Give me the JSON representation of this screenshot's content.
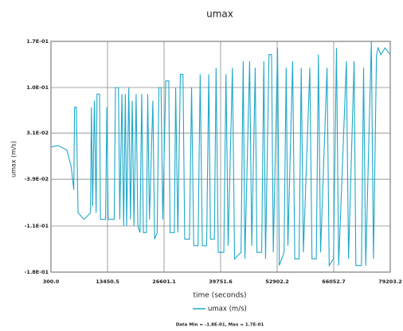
{
  "chart_data": {
    "type": "line",
    "title": "umax",
    "xlabel": "time (seconds)",
    "ylabel": "umax (m/s)",
    "footer": "Data Min = -1.8E-01, Max = 1.7E-01",
    "xlim": [
      300,
      79203.2
    ],
    "ylim": [
      -0.18,
      0.17
    ],
    "xticks": [
      {
        "value": 300,
        "label": "300.0"
      },
      13450.5,
      26601.1,
      39751.6,
      52902.2,
      66052.7,
      79203.2
    ],
    "yticks": [
      {
        "value": -0.18,
        "label": "-1.8E-01"
      },
      {
        "value": -0.11,
        "label": "-1.1E-01"
      },
      {
        "value": -0.039,
        "label": "-3.9E-02"
      },
      {
        "value": 0.031,
        "label": "3.1E-02"
      },
      {
        "value": 0.1,
        "label": "1.0E-01"
      },
      {
        "value": 0.17,
        "label": "1.7E-01"
      }
    ],
    "grid": true,
    "x": [
      300,
      2000,
      4000,
      5000,
      5600,
      5800,
      6200,
      6600,
      8000,
      9500,
      9700,
      10000,
      10400,
      10800,
      11000,
      11600,
      11800,
      13000,
      13300,
      13600,
      15000,
      15300,
      16000,
      16300,
      16800,
      17200,
      17600,
      17900,
      18400,
      18800,
      19200,
      19600,
      20100,
      20500,
      21000,
      21400,
      21800,
      22500,
      22800,
      23200,
      24000,
      24400,
      25000,
      25400,
      25900,
      26300,
      27000,
      27700,
      28000,
      29000,
      29300,
      29800,
      30400,
      31000,
      31400,
      32500,
      33000,
      33500,
      34500,
      35000,
      35500,
      36500,
      37000,
      37400,
      38300,
      38700,
      39200,
      40500,
      41000,
      41500,
      42500,
      43000,
      44500,
      45000,
      45400,
      46500,
      47000,
      47800,
      48200,
      49300,
      49800,
      50200,
      51000,
      51600,
      52000,
      53000,
      53400,
      54500,
      55000,
      55400,
      56500,
      57000,
      58000,
      58500,
      59000,
      60500,
      61000,
      62000,
      62500,
      63000,
      64500,
      65000,
      66000,
      66700,
      67200,
      69000,
      69500,
      70800,
      71200,
      72500,
      73000,
      73500,
      74800,
      75300,
      76000,
      76400,
      77000,
      78000,
      79203.2
    ],
    "series": [
      {
        "name": "umax (m/s)",
        "color": "#1fa8c9",
        "values": [
          0.01,
          0.012,
          0.005,
          -0.02,
          -0.055,
          0.07,
          0.07,
          -0.09,
          -0.1,
          -0.09,
          0.07,
          -0.08,
          0.08,
          -0.09,
          0.09,
          0.09,
          -0.1,
          -0.1,
          0.07,
          -0.1,
          -0.1,
          0.1,
          0.1,
          -0.1,
          0.09,
          -0.11,
          0.09,
          -0.11,
          0.1,
          -0.1,
          0.08,
          -0.11,
          0.09,
          -0.11,
          -0.12,
          0.09,
          -0.12,
          -0.12,
          0.09,
          -0.1,
          0.08,
          -0.13,
          -0.12,
          0.1,
          0.1,
          -0.1,
          0.11,
          0.11,
          -0.12,
          -0.12,
          0.1,
          -0.12,
          0.12,
          0.12,
          -0.13,
          -0.13,
          0.1,
          -0.14,
          -0.14,
          0.12,
          -0.14,
          -0.14,
          0.12,
          -0.13,
          -0.13,
          0.13,
          -0.15,
          -0.15,
          0.12,
          -0.14,
          0.13,
          -0.16,
          -0.15,
          0.14,
          -0.16,
          0.14,
          -0.14,
          0.13,
          -0.15,
          -0.15,
          0.14,
          -0.16,
          0.15,
          0.15,
          -0.15,
          0.16,
          -0.17,
          -0.15,
          0.13,
          -0.14,
          0.14,
          -0.16,
          -0.16,
          0.13,
          -0.15,
          0.13,
          -0.16,
          -0.16,
          0.15,
          -0.15,
          0.13,
          -0.17,
          -0.16,
          0.16,
          -0.17,
          0.14,
          -0.16,
          0.14,
          -0.17,
          -0.17,
          0.13,
          -0.17,
          0.17,
          -0.16,
          0.15,
          0.16,
          0.15,
          0.16,
          0.15
        ]
      }
    ]
  }
}
